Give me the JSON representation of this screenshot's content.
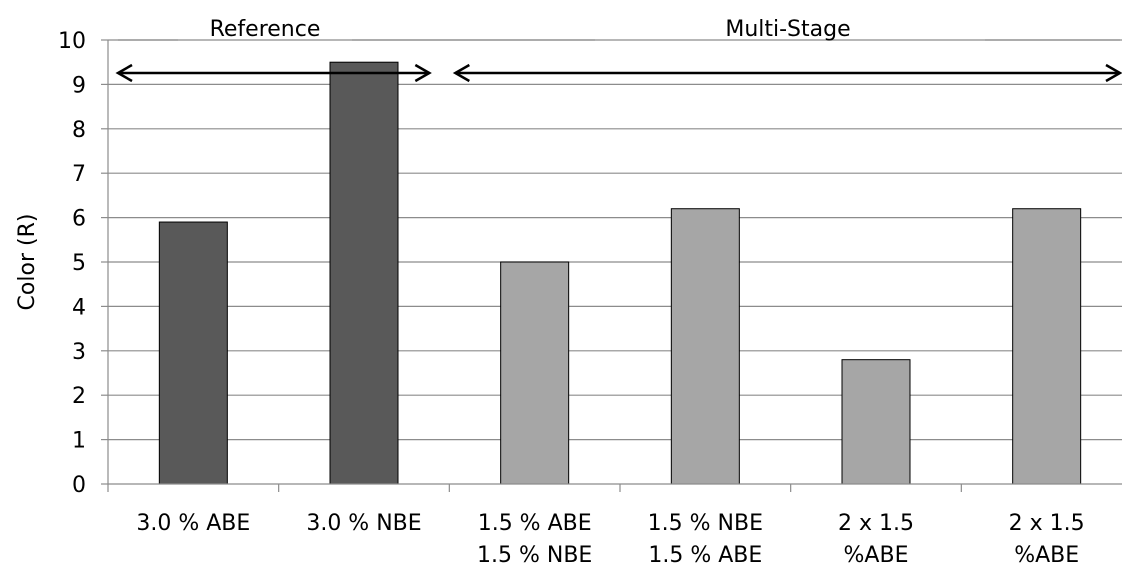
{
  "chart_data": {
    "type": "bar",
    "title": "",
    "xlabel": "",
    "ylabel": "Color (R)",
    "ylim": [
      0,
      10
    ],
    "yticks": [
      0,
      1,
      2,
      3,
      4,
      5,
      6,
      7,
      8,
      9,
      10
    ],
    "grid": true,
    "categories": [
      [
        "3.0 % ABE"
      ],
      [
        "3.0 % NBE"
      ],
      [
        "1.5 % ABE",
        "1.5 % NBE"
      ],
      [
        "1.5 % NBE",
        "1.5 % ABE"
      ],
      [
        "2 x 1.5",
        "%ABE"
      ],
      [
        "2 x 1.5",
        "%ABE"
      ]
    ],
    "values": [
      5.9,
      9.5,
      5.0,
      6.2,
      2.8,
      6.2
    ],
    "bar_colors": [
      "#595959",
      "#595959",
      "#a6a6a6",
      "#a6a6a6",
      "#a6a6a6",
      "#a6a6a6"
    ],
    "groups": [
      {
        "label": "Reference",
        "start_index": 0,
        "end_index": 1
      },
      {
        "label": "Multi-Stage",
        "start_index": 2,
        "end_index": 5
      }
    ]
  }
}
